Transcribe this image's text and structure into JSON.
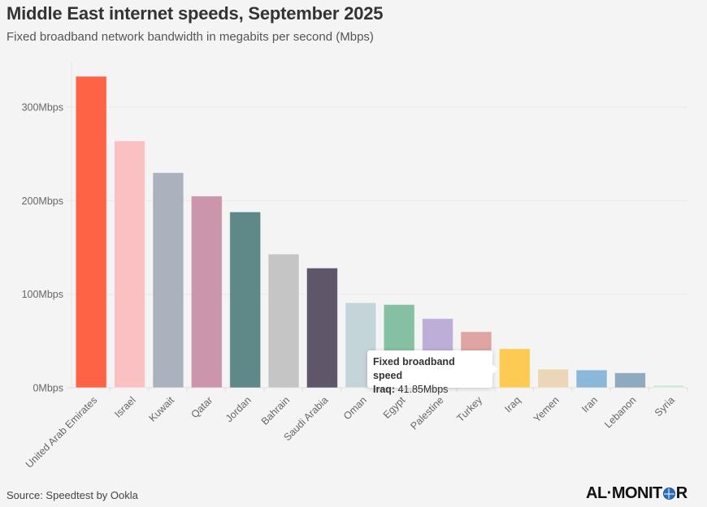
{
  "header": {
    "title": "Middle East internet speeds, September 2025",
    "subtitle": "Fixed broadband network bandwidth in megabits per second (Mbps)"
  },
  "footer": {
    "source": "Source: Speedtest by Ookla",
    "logo_text_left": "AL·MONIT",
    "logo_text_right": "R",
    "logo_icon": "globe-icon"
  },
  "tooltip": {
    "title": "Fixed broadband speed",
    "label": "Iraq:",
    "value": "41.85Mbps"
  },
  "chart_data": {
    "type": "bar",
    "title": "Middle East internet speeds, September 2025",
    "subtitle": "Fixed broadband network bandwidth in megabits per second (Mbps)",
    "xlabel": "",
    "ylabel": "",
    "ylim": [
      0,
      335
    ],
    "grid": true,
    "yticks": [
      0,
      100,
      200,
      300
    ],
    "ytick_labels": [
      "0Mbps",
      "100Mbps",
      "200Mbps",
      "300Mbps"
    ],
    "categories": [
      "United Arab Emirates",
      "Israel",
      "Kuwait",
      "Qatar",
      "Jordan",
      "Bahrain",
      "Saudi Arabia",
      "Oman",
      "Egypt",
      "Palestine",
      "Turkey",
      "Iraq",
      "Yemen",
      "Iran",
      "Lebanon",
      "Syria"
    ],
    "values": [
      333,
      264,
      230,
      205,
      188,
      143,
      128,
      91,
      89,
      74,
      60,
      41.85,
      20,
      19,
      16,
      3
    ],
    "colors": [
      "#fe6346",
      "#fbc0c2",
      "#abb2bd",
      "#cb95ab",
      "#5f8988",
      "#c5c5c5",
      "#5f566a",
      "#c4d5da",
      "#86c0a4",
      "#bdaed8",
      "#dea5a2",
      "#fdcb53",
      "#ebd6b7",
      "#8bb8d9",
      "#8fa9be",
      "#cfecd6"
    ]
  }
}
